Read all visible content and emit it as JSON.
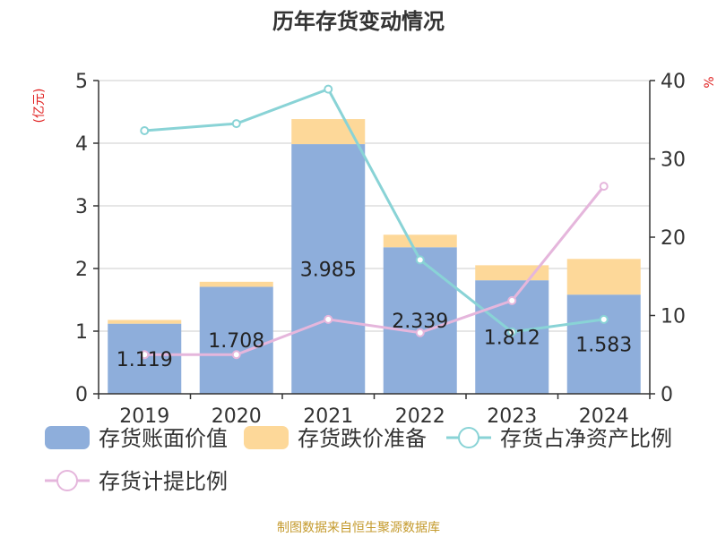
{
  "title": "历年存货变动情况",
  "footer": "制图数据来自恒生聚源数据库",
  "left_unit": "(亿元)",
  "right_unit": "%",
  "colors": {
    "book_value": "#8eaedb",
    "impairment": "#fdd899",
    "net_asset_ratio": "#89d3d6",
    "provision_ratio": "#e5b6dc",
    "unit_text": "#e02020",
    "footer_text": "#c49a2c",
    "title_text": "#333333",
    "grid": "#cccccc"
  },
  "chart_data": {
    "type": "bar",
    "categories": [
      "2019",
      "2020",
      "2021",
      "2022",
      "2023",
      "2024"
    ],
    "series": [
      {
        "name": "存货账面价值",
        "type": "bar",
        "axis": "left",
        "stack": "inv",
        "color": "#8eaedb",
        "values": [
          1.119,
          1.708,
          3.985,
          2.339,
          1.812,
          1.583
        ],
        "labels": [
          "1.119",
          "1.708",
          "3.985",
          "2.339",
          "1.812",
          "1.583"
        ]
      },
      {
        "name": "存货跌价准备",
        "type": "bar",
        "axis": "left",
        "stack": "inv",
        "color": "#fdd899",
        "values": [
          0.06,
          0.08,
          0.4,
          0.2,
          0.24,
          0.57
        ]
      },
      {
        "name": "存货占净资产比例",
        "type": "line",
        "axis": "right",
        "color": "#89d3d6",
        "values": [
          33.6,
          34.5,
          38.9,
          17.1,
          7.9,
          9.5
        ]
      },
      {
        "name": "存货计提比例",
        "type": "line",
        "axis": "right",
        "color": "#e5b6dc",
        "values": [
          5.0,
          5.0,
          9.5,
          7.8,
          11.9,
          26.5
        ]
      }
    ],
    "y_left": {
      "min": 0,
      "max": 5,
      "ticks": [
        "0",
        "1",
        "2",
        "3",
        "4",
        "5"
      ]
    },
    "y_right": {
      "min": 0,
      "max": 40,
      "ticks": [
        "0",
        "10",
        "20",
        "30",
        "40"
      ]
    },
    "grid": true,
    "legend_position": "bottom"
  }
}
